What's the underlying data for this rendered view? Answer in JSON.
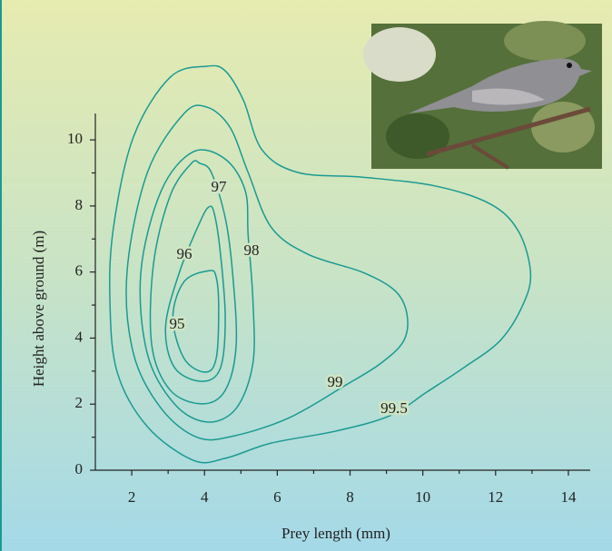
{
  "chart_data": {
    "type": "contour",
    "x_label": "Prey length (mm)",
    "y_label": "Height above ground (m)",
    "xlim": [
      1,
      14.6
    ],
    "ylim": [
      0,
      10.8
    ],
    "xticks": [
      2,
      4,
      6,
      8,
      10,
      12,
      14
    ],
    "yticks": [
      0,
      2,
      4,
      6,
      8,
      10
    ],
    "color": "#1a9a92",
    "contours": [
      {
        "level": 95,
        "x": [
          4.12,
          3.44,
          3.13,
          3.44,
          4.02,
          4.32,
          4.39,
          4.32
        ],
        "y": [
          6.04,
          5.71,
          4.62,
          3.38,
          2.97,
          3.38,
          4.89,
          5.85
        ]
      },
      {
        "level": 96,
        "x": [
          4.12,
          3.87,
          3.31,
          2.93,
          3.18,
          3.94,
          4.44,
          4.57,
          4.44,
          4.27
        ],
        "y": [
          7.97,
          7.5,
          5.99,
          4.34,
          3.1,
          2.69,
          3.1,
          4.62,
          6.54,
          7.77
        ]
      },
      {
        "level": 97,
        "x": [
          3.64,
          3.06,
          2.6,
          2.55,
          3.06,
          3.94,
          4.57,
          4.87,
          4.77,
          4.57,
          4.19,
          3.87
        ],
        "y": [
          9.29,
          8.32,
          6.26,
          3.79,
          2.42,
          2.01,
          2.42,
          3.79,
          5.99,
          7.64,
          9.01,
          9.29
        ]
      },
      {
        "level": 98,
        "x": [
          3.69,
          2.81,
          2.25,
          2.43,
          3.18,
          4.07,
          4.87,
          5.33,
          5.33,
          5.2,
          5.12,
          4.57
        ],
        "y": [
          9.64,
          8.46,
          5.99,
          3.52,
          2.0,
          1.46,
          1.87,
          3.24,
          5.16,
          7.09,
          8.46,
          9.42
        ]
      },
      {
        "level": 99,
        "x": [
          3.44,
          2.43,
          1.87,
          2.05,
          2.81,
          3.81,
          4.82,
          6.33,
          7.84,
          8.85,
          9.48,
          9.56,
          9.23,
          8.35,
          6.84,
          5.83,
          5.2,
          4.7,
          4.07
        ],
        "y": [
          10.8,
          9.01,
          5.99,
          3.52,
          1.87,
          0.99,
          1.04,
          1.59,
          2.55,
          3.24,
          3.93,
          4.75,
          5.44,
          5.99,
          6.54,
          7.36,
          9.01,
          10.38,
          10.99
        ]
      },
      {
        "level": 99.5,
        "x": [
          4.07,
          3.06,
          2.05,
          1.5,
          1.4,
          1.6,
          2.43,
          3.69,
          4.57,
          5.83,
          7.59,
          9.1,
          10.1,
          11.12,
          12.13,
          12.76,
          12.96,
          12.63,
          11.87,
          10.36,
          8.35,
          6.58,
          5.58,
          5.07,
          4.57
        ],
        "y": [
          12.23,
          11.9,
          10.1,
          7.36,
          5.16,
          2.97,
          1.32,
          0.3,
          0.36,
          0.82,
          1.18,
          1.65,
          2.36,
          3.1,
          3.93,
          5.03,
          5.99,
          7.23,
          8.05,
          8.6,
          8.87,
          9.01,
          9.7,
          11.2,
          12.09
        ]
      }
    ]
  }
}
